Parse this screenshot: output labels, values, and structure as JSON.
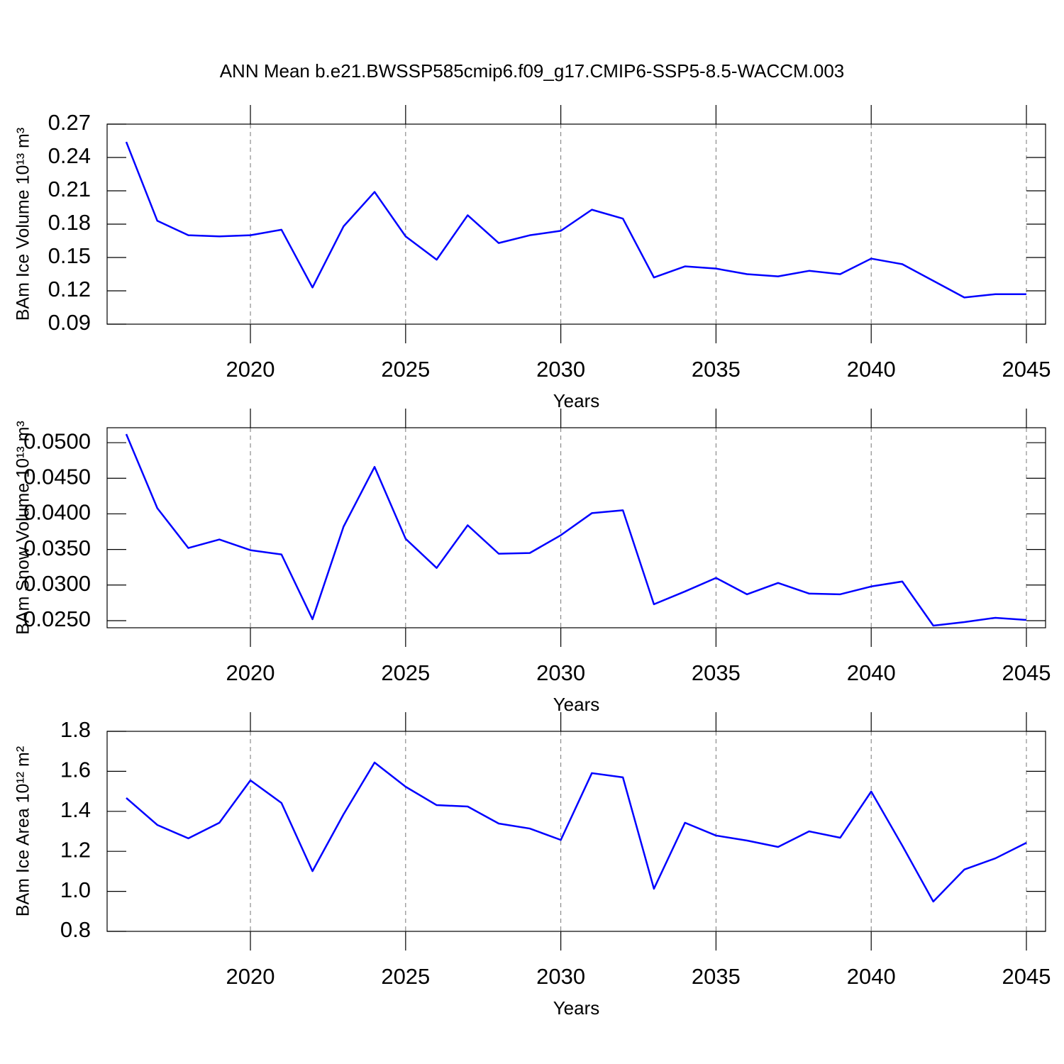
{
  "title": "ANN Mean b.e21.BWSSP585cmip6.f09_g17.CMIP6-SSP5-8.5-WACCM.003",
  "chart_data": [
    {
      "type": "line",
      "ylabel": "BAm Ice Volume 10¹³ m³",
      "xlabel": "Years",
      "color": "#0000ff",
      "grid": true,
      "x": [
        2016,
        2017,
        2018,
        2019,
        2020,
        2021,
        2022,
        2023,
        2024,
        2025,
        2026,
        2027,
        2028,
        2029,
        2030,
        2031,
        2032,
        2033,
        2034,
        2035,
        2036,
        2037,
        2038,
        2039,
        2040,
        2041,
        2042,
        2043,
        2044,
        2045
      ],
      "values": [
        0.254,
        0.183,
        0.17,
        0.169,
        0.17,
        0.175,
        0.123,
        0.178,
        0.209,
        0.169,
        0.148,
        0.188,
        0.163,
        0.17,
        0.174,
        0.193,
        0.185,
        0.132,
        0.142,
        0.14,
        0.135,
        0.133,
        0.138,
        0.135,
        0.149,
        0.144,
        0.129,
        0.114,
        0.117,
        0.117
      ],
      "xlim": [
        2016,
        2045
      ],
      "xticks": [
        2020,
        2025,
        2030,
        2035,
        2040,
        2045
      ],
      "ylim": [
        0.09,
        0.27
      ],
      "yticks": [
        0.09,
        0.12,
        0.15,
        0.18,
        0.21,
        0.24,
        0.27
      ]
    },
    {
      "type": "line",
      "ylabel": "BAm Snow Volume 10¹³ m³",
      "xlabel": "Years",
      "color": "#0000ff",
      "grid": true,
      "x": [
        2016,
        2017,
        2018,
        2019,
        2020,
        2021,
        2022,
        2023,
        2024,
        2025,
        2026,
        2027,
        2028,
        2029,
        2030,
        2031,
        2032,
        2033,
        2034,
        2035,
        2036,
        2037,
        2038,
        2039,
        2040,
        2041,
        2042,
        2043,
        2044,
        2045
      ],
      "values": [
        0.0512,
        0.0408,
        0.0352,
        0.0364,
        0.0349,
        0.0343,
        0.0252,
        0.0382,
        0.0466,
        0.0365,
        0.0324,
        0.0384,
        0.0344,
        0.0345,
        0.037,
        0.0401,
        0.0405,
        0.0273,
        0.0291,
        0.031,
        0.0287,
        0.0303,
        0.0288,
        0.0287,
        0.0298,
        0.0305,
        0.0243,
        0.0248,
        0.0254,
        0.0251
      ],
      "xlim": [
        2016,
        2045
      ],
      "xticks": [
        2020,
        2025,
        2030,
        2035,
        2040,
        2045
      ],
      "ylim": [
        0.024,
        0.0521
      ],
      "yticks": [
        {
          "value": 0.025,
          "label": "0.0250"
        },
        {
          "value": 0.03,
          "label": "0.0300"
        },
        {
          "value": 0.035,
          "label": "0.0350"
        },
        {
          "value": 0.04,
          "label": "0.0400"
        },
        {
          "value": 0.045,
          "label": "0.0450"
        },
        {
          "value": 0.05,
          "label": "0.0500"
        }
      ]
    },
    {
      "type": "line",
      "ylabel": "BAm Ice Area 10¹² m²",
      "xlabel": "Years",
      "color": "#0000ff",
      "grid": true,
      "x": [
        2016,
        2017,
        2018,
        2019,
        2020,
        2021,
        2022,
        2023,
        2024,
        2025,
        2026,
        2027,
        2028,
        2029,
        2030,
        2031,
        2032,
        2033,
        2034,
        2035,
        2036,
        2037,
        2038,
        2039,
        2040,
        2041,
        2042,
        2043,
        2044,
        2045
      ],
      "values": [
        1.467,
        1.332,
        1.265,
        1.343,
        1.555,
        1.442,
        1.101,
        1.385,
        1.644,
        1.523,
        1.431,
        1.424,
        1.339,
        1.314,
        1.257,
        1.591,
        1.57,
        1.013,
        1.343,
        1.279,
        1.254,
        1.222,
        1.3,
        1.268,
        1.499,
        1.229,
        0.949,
        1.109,
        1.165,
        1.243
      ],
      "xlim": [
        2016,
        2045
      ],
      "xticks": [
        2020,
        2025,
        2030,
        2035,
        2040,
        2045
      ],
      "ylim": [
        0.8,
        1.8
      ],
      "yticks": [
        0.8,
        {
          "value": 1,
          "label": "1.0"
        },
        1.2,
        1.4,
        1.6,
        1.8
      ]
    }
  ]
}
